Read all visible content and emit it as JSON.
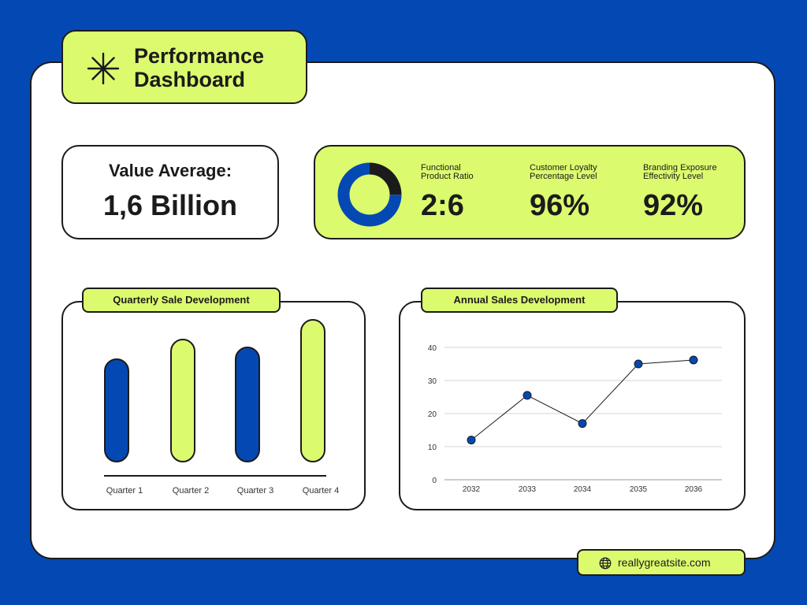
{
  "header": {
    "title_line1": "Performance",
    "title_line2": "Dashboard"
  },
  "value_card": {
    "label": "Value Average:",
    "value": "1,6 Billion"
  },
  "stats": [
    {
      "label_line1": "Functional",
      "label_line2": "Product Ratio",
      "value": "2:6"
    },
    {
      "label_line1": "Customer Loyalty",
      "label_line2": "Percentage Level",
      "value": "96%"
    },
    {
      "label_line1": "Branding Exposure",
      "label_line2": "Effectivity Level",
      "value": "92%"
    }
  ],
  "footer": {
    "website": "reallygreatsite.com"
  },
  "colors": {
    "background": "#0449b3",
    "accent": "#dcfa6e",
    "blue": "#0449b3",
    "dark": "#1b1b1b"
  },
  "chart_data": [
    {
      "type": "pie",
      "slices": [
        {
          "value": 2,
          "color": "#1b1b1b"
        },
        {
          "value": 6,
          "color": "#0449b3"
        }
      ]
    },
    {
      "type": "bar",
      "title": "Quarterly Sale Development",
      "categories": [
        "Quarter 1",
        "Quarter 2",
        "Quarter 3",
        "Quarter 4"
      ],
      "values": [
        26,
        31,
        29,
        36
      ],
      "colors": [
        "#0449b3",
        "#dcfa6e",
        "#0449b3",
        "#dcfa6e"
      ]
    },
    {
      "type": "line",
      "title": "Annual Sales Development",
      "x": [
        "2032",
        "2033",
        "2034",
        "2035",
        "2036"
      ],
      "y": [
        12,
        25.5,
        17,
        35,
        36.2
      ],
      "ylim": [
        0,
        40
      ],
      "yticks": [
        "0",
        "10",
        "20",
        "30",
        "40"
      ],
      "grid": true
    }
  ]
}
